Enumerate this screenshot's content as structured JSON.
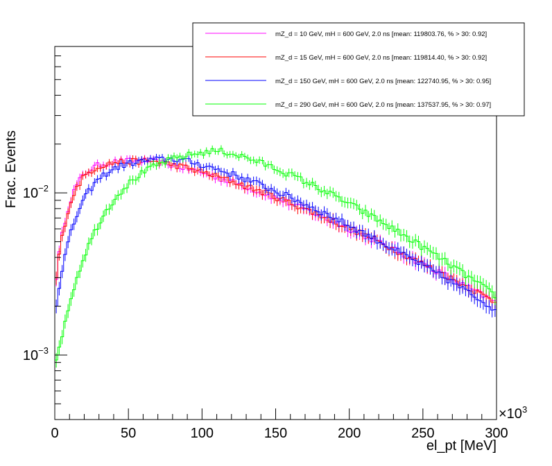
{
  "chart_data": {
    "type": "line",
    "title": "",
    "xlabel": "el_pt [MeV]",
    "ylabel": "Frac. Events",
    "x_multiplier_label": "×10",
    "x_multiplier_exponent": "3",
    "xlim": [
      0,
      300000
    ],
    "ylim": [
      0.0004,
      0.08
    ],
    "yscale": "log",
    "grid": false,
    "legend_position": "top-right",
    "x_ticks": [
      0,
      50000,
      100000,
      150000,
      200000,
      250000,
      300000
    ],
    "x_tick_labels": [
      "0",
      "50",
      "100",
      "150",
      "200",
      "250",
      "300"
    ],
    "y_ticks": [
      0.001,
      0.01
    ],
    "y_tick_labels": [
      {
        "base": "10",
        "exp": "−3"
      },
      {
        "base": "10",
        "exp": "−2"
      }
    ],
    "series": [
      {
        "name": "mZ_d = 10 GeV, mH = 600 GeV, 2.0 ns [mean: 119803.76, % > 30: 0.92]",
        "color": "#ff00ff",
        "shape": {
          "start": 0.0025,
          "rise_scale": 9000,
          "peak_x": 62000,
          "peak": 0.0158,
          "decay_slope": 0.0046,
          "end": 0.0021
        }
      },
      {
        "name": "mZ_d = 15 GeV, mH = 600 GeV, 2.0 ns [mean: 119814.40, % > 30: 0.92]",
        "color": "#ff0000",
        "shape": {
          "start": 0.0025,
          "rise_scale": 9500,
          "peak_x": 65000,
          "peak": 0.0157,
          "decay_slope": 0.0046,
          "end": 0.0021
        }
      },
      {
        "name": "mZ_d = 150 GeV, mH = 600 GeV, 2.0 ns [mean: 122740.95, % > 30: 0.95]",
        "color": "#0000ff",
        "shape": {
          "start": 0.0018,
          "rise_scale": 15000,
          "peak_x": 80000,
          "peak": 0.0162,
          "decay_slope": 0.0047,
          "end": 0.0019
        }
      },
      {
        "name": "mZ_d = 290 GeV, mH = 600 GeV, 2.0 ns [mean: 137537.95, % > 30: 0.97]",
        "color": "#00ff00",
        "shape": {
          "start": 0.0008,
          "rise_scale": 28000,
          "peak_x": 110000,
          "peak": 0.0182,
          "decay_slope": 0.0056,
          "end": 0.0023
        }
      }
    ]
  }
}
